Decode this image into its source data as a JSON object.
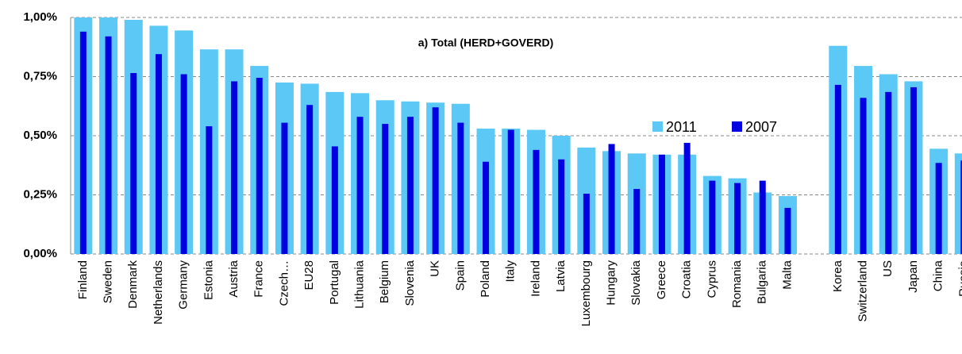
{
  "chart_data": {
    "type": "bar",
    "title": "a) Total (HERD+GOVERD)",
    "categories": [
      "Finland",
      "Sweden",
      "Denmark",
      "Netherlands",
      "Germany",
      "Estonia",
      "Austria",
      "France",
      "Czech…",
      "EU28",
      "Portugal",
      "Lithuania",
      "Belgium",
      "Slovenia",
      "UK",
      "Spain",
      "Poland",
      "Italy",
      "Ireland",
      "Latvia",
      "Luxembourg",
      "Hungary",
      "Slovakia",
      "Greece",
      "Croatia",
      "Cyprus",
      "Romania",
      "Bulgaria",
      "Malta",
      null,
      "Korea",
      "Switzerland",
      "US",
      "Japan",
      "China",
      "Russia"
    ],
    "series": [
      {
        "name": "2011",
        "color": "#5bc8f5",
        "values": [
          1.0,
          1.0,
          0.99,
          0.965,
          0.945,
          0.865,
          0.865,
          0.795,
          0.725,
          0.72,
          0.685,
          0.68,
          0.65,
          0.645,
          0.64,
          0.635,
          0.53,
          0.53,
          0.525,
          0.5,
          0.45,
          0.435,
          0.425,
          0.42,
          0.42,
          0.33,
          0.32,
          0.26,
          0.245,
          null,
          0.88,
          0.795,
          0.76,
          0.73,
          0.445,
          0.425
        ]
      },
      {
        "name": "2007",
        "color": "#0000e0",
        "values": [
          0.94,
          0.92,
          0.765,
          0.845,
          0.76,
          0.54,
          0.73,
          0.745,
          0.555,
          0.63,
          0.455,
          0.58,
          0.55,
          0.58,
          0.62,
          0.555,
          0.39,
          0.525,
          0.44,
          0.4,
          0.255,
          0.465,
          0.275,
          0.42,
          0.47,
          0.31,
          0.3,
          0.31,
          0.195,
          null,
          0.715,
          0.66,
          0.685,
          0.705,
          0.385,
          0.395
        ]
      }
    ],
    "ylim": [
      0,
      1
    ],
    "yticks": [
      {
        "value": 0,
        "label": "0,00%"
      },
      {
        "value": 0.25,
        "label": "0,25%"
      },
      {
        "value": 0.5,
        "label": "0,50%"
      },
      {
        "value": 0.75,
        "label": "0,75%"
      },
      {
        "value": 1,
        "label": "1,00%"
      }
    ],
    "grid": true
  }
}
